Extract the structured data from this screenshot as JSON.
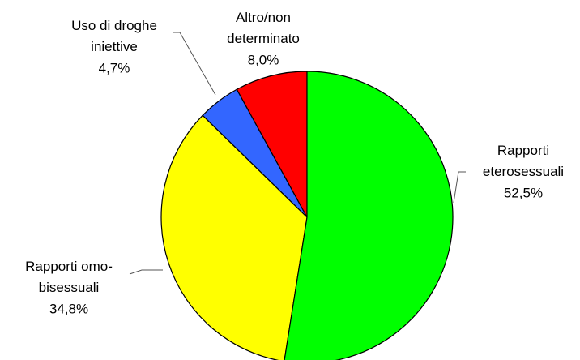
{
  "chart_data": {
    "type": "pie",
    "categories": [
      "Rapporti\neterosessuali",
      "Rapporti omo-\nbisessuali",
      "Uso di droghe\niniettive",
      "Altro/non\ndeterminato"
    ],
    "values": [
      52.5,
      34.8,
      4.7,
      8.0
    ],
    "value_labels": [
      "52,5%",
      "34,8%",
      "4,7%",
      "8,0%"
    ],
    "colors": [
      "#00ff00",
      "#ffff00",
      "#3366ff",
      "#ff0000"
    ]
  }
}
